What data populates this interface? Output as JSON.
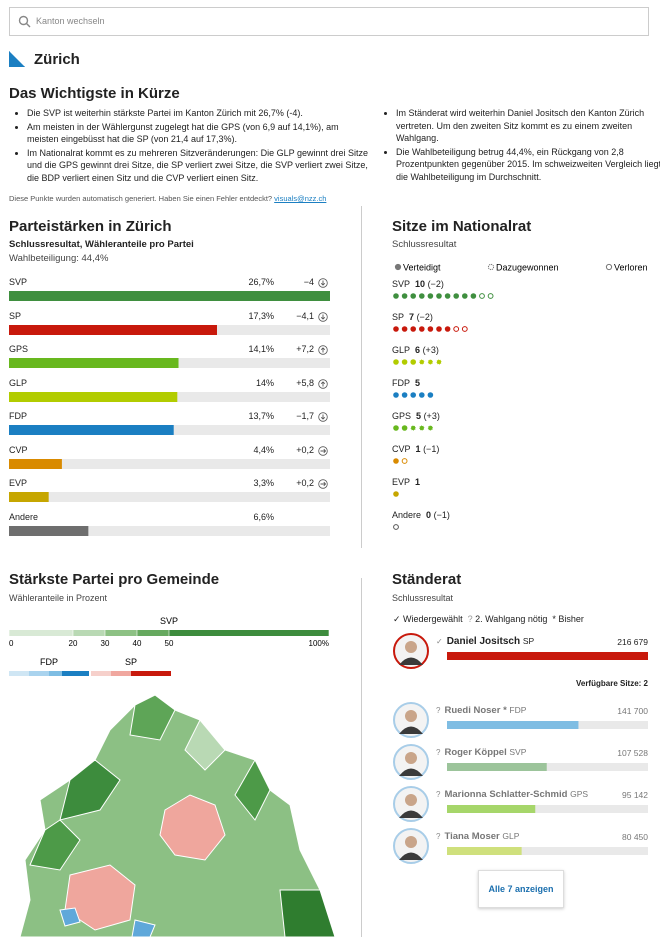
{
  "search": {
    "placeholder": "Kanton wechseln"
  },
  "header": {
    "title": "Zürich"
  },
  "summary": {
    "title": "Das Wichtigste in Kürze",
    "left": [
      "Die SVP ist weiterhin stärkste Partei im Kanton Zürich mit 26,7% (-4).",
      "Am meisten in der Wählergunst zugelegt hat die GPS (von 6,9 auf 14,1%), am meisten eingebüsst hat die SP (von 21,4 auf 17,3%).",
      "Im Nationalrat kommt es zu mehreren Sitzveränderungen: Die GLP gewinnt drei Sitze und die GPS gewinnt drei Sitze, die SP verliert zwei Sitze, die SVP verliert zwei Sitze, die BDP verliert einen Sitz und die CVP verliert einen Sitz."
    ],
    "right": [
      "Im Ständerat wird weiterhin Daniel Jositsch den Kanton Zürich vertreten. Um den zweiten Sitz kommt es zu einem zweiten Wahlgang.",
      "Die Wahlbeteiligung betrug 44,4%, ein Rückgang von 2,8 Prozentpunkten gegenüber 2015. Im schweizweiten Vergleich liegt die Wahlbeteiligung im Durchschnitt."
    ],
    "note": "Diese Punkte wurden automatisch generiert. Haben Sie einen Fehler entdeckt?",
    "link": "visuals@nzz.ch"
  },
  "party_strength": {
    "title": "Parteistärken in Zürich",
    "subtitle": "Schlussresultat, Wähleranteile pro Partei",
    "turnout": "Wahlbeteiligung: 44,4%",
    "parties": [
      {
        "name": "SVP",
        "color": "#3f8f3f",
        "value": 26.7,
        "label": "26,7%",
        "change": -4,
        "change_label": "−4"
      },
      {
        "name": "SP",
        "color": "#c8190c",
        "value": 17.3,
        "label": "17,3%",
        "change": -4.1,
        "change_label": "−4,1"
      },
      {
        "name": "GPS",
        "color": "#68b81e",
        "value": 14.1,
        "label": "14,1%",
        "change": 7.2,
        "change_label": "+7,2"
      },
      {
        "name": "GLP",
        "color": "#b2cc00",
        "value": 14,
        "label": "14%",
        "change": 5.8,
        "change_label": "+5,8"
      },
      {
        "name": "FDP",
        "color": "#1b7fc2",
        "value": 13.7,
        "label": "13,7%",
        "change": -1.7,
        "change_label": "−1,7"
      },
      {
        "name": "CVP",
        "color": "#d98a00",
        "value": 4.4,
        "label": "4,4%",
        "change": 0.2,
        "change_label": "+0,2"
      },
      {
        "name": "EVP",
        "color": "#c6a600",
        "value": 3.3,
        "label": "3,3%",
        "change": 0.2,
        "change_label": "+0,2"
      },
      {
        "name": "Andere",
        "color": "#6e6e6e",
        "value": 6.6,
        "label": "6,6%"
      }
    ]
  },
  "seats": {
    "title": "Sitze im Nationalrat",
    "subtitle": "Schlussresultat",
    "legend": [
      "Verteidigt",
      "Dazugewonnen",
      "Verloren"
    ],
    "parties": [
      {
        "name": "SVP",
        "color": "#3f8f3f",
        "seats": 10,
        "change": -2,
        "change_label": "(−2)"
      },
      {
        "name": "SP",
        "color": "#c8190c",
        "seats": 7,
        "change": -2,
        "change_label": "(−2)"
      },
      {
        "name": "GLP",
        "color": "#b2cc00",
        "seats": 6,
        "change": 3,
        "change_label": "(+3)"
      },
      {
        "name": "FDP",
        "color": "#1b7fc2",
        "seats": 5
      },
      {
        "name": "GPS",
        "color": "#68b81e",
        "seats": 5,
        "change": 3,
        "change_label": "(+3)"
      },
      {
        "name": "CVP",
        "color": "#d98a00",
        "seats": 1,
        "change": -1,
        "change_label": "(−1)"
      },
      {
        "name": "EVP",
        "color": "#c6a600",
        "seats": 1
      },
      {
        "name": "Andere",
        "color": "#6e6e6e",
        "seats": 0,
        "change": -1,
        "change_label": "(−1)"
      }
    ]
  },
  "map": {
    "title": "Stärkste Partei pro Gemeinde",
    "subtitle": "Wähleranteile in Prozent",
    "scale_name": "SVP",
    "ticks": [
      0,
      20,
      30,
      40,
      50,
      {
        "value": 100,
        "label": "100%"
      }
    ],
    "legend": [
      "FDP",
      "SP"
    ]
  },
  "council": {
    "title": "Ständerat",
    "subtitle": "Schlussresultat",
    "legend": [
      "Wiedergewählt",
      "2. Wahlgang nötig",
      "* Bisher"
    ],
    "available": "Verfügbare Sitze: 2",
    "button": "Alle 7 anzeigen",
    "candidates": [
      {
        "name": "Daniel Jositsch",
        "party": "SP",
        "color": "#c8190c",
        "votes": 216679,
        "label": "216 679",
        "elected": true
      },
      {
        "name": "Ruedi Noser",
        "marker": "*",
        "party": "FDP",
        "color": "#7fbde3",
        "votes": 141700,
        "label": "141 700"
      },
      {
        "name": "Roger Köppel",
        "party": "SVP",
        "color": "#9cc49b",
        "votes": 107528,
        "label": "107 528"
      },
      {
        "name": "Marionna Schlatter-Schmid",
        "party": "GPS",
        "color": "#a6d66a",
        "votes": 95142,
        "label": "95 142"
      },
      {
        "name": "Tiana Moser",
        "party": "GLP",
        "color": "#cfe07c",
        "votes": 80450,
        "label": "80 450"
      }
    ]
  }
}
